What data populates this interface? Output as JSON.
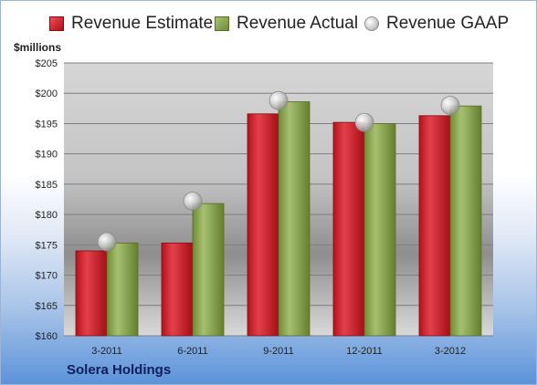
{
  "chart_data": {
    "type": "bar",
    "title": "",
    "caption": "Solera Holdings",
    "xlabel": "",
    "ylabel": "$millions",
    "categories": [
      "3-2011",
      "6-2011",
      "9-2011",
      "12-2011",
      "3-2012"
    ],
    "ylim": [
      160,
      205
    ],
    "yticks": [
      160,
      165,
      170,
      175,
      180,
      185,
      190,
      195,
      200,
      205
    ],
    "ytick_labels": [
      "$160",
      "$165",
      "$170",
      "$175",
      "$180",
      "$185",
      "$190",
      "$195",
      "$200",
      "$205"
    ],
    "grid": true,
    "legend_position": "top",
    "series": [
      {
        "name": "Revenue Estimate",
        "marker": "bar",
        "color": "#c8202a",
        "values": [
          174.0,
          175.3,
          196.6,
          195.2,
          196.3
        ]
      },
      {
        "name": "Revenue Actual",
        "marker": "bar",
        "color": "#8aa84f",
        "values": [
          175.3,
          181.8,
          198.6,
          195.0,
          197.9
        ]
      },
      {
        "name": "Revenue GAAP",
        "marker": "circle",
        "color": "#c8c8c8",
        "values": [
          175.5,
          182.2,
          198.8,
          195.2,
          198.0
        ]
      }
    ]
  }
}
